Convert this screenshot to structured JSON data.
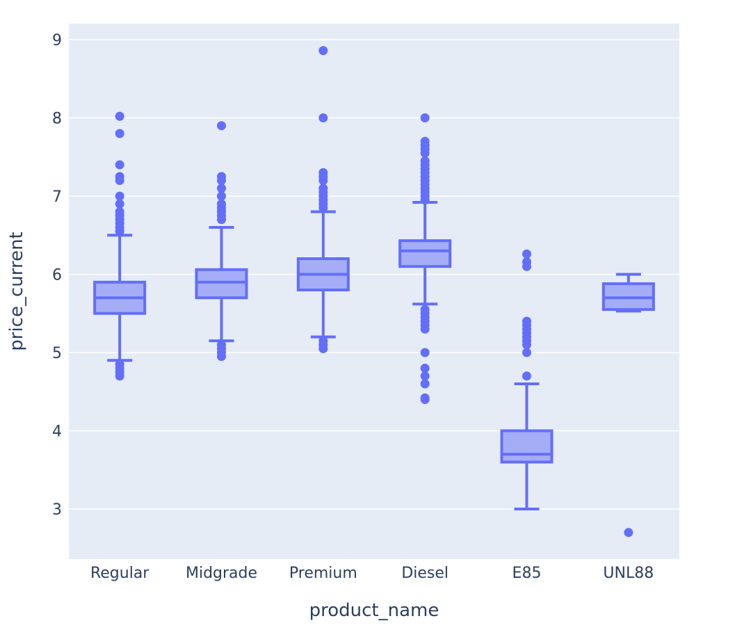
{
  "chart_data": {
    "type": "box",
    "xlabel": "product_name",
    "ylabel": "price_current",
    "ylim": [
      2.38,
      9.2
    ],
    "yticks": [
      3,
      4,
      5,
      6,
      7,
      8,
      9
    ],
    "grid": true,
    "colors": {
      "plot_bg": "#e5ecf6",
      "grid": "#ffffff",
      "box_fill": "#a5adf6",
      "box_line": "#636efa",
      "text": "#2a3f5f"
    },
    "categories": [
      "Regular",
      "Midgrade",
      "Premium",
      "Diesel",
      "E85",
      "UNL88"
    ],
    "boxes": [
      {
        "name": "Regular",
        "lower_fence": 4.9,
        "q1": 5.5,
        "median": 5.7,
        "q3": 5.9,
        "upper_fence": 6.5,
        "outliers": [
          8.02,
          7.8,
          7.4,
          7.25,
          7.2,
          7.0,
          6.9,
          6.8,
          6.75,
          6.7,
          6.65,
          6.6,
          6.55,
          4.85,
          4.8,
          4.75,
          4.7
        ]
      },
      {
        "name": "Midgrade",
        "lower_fence": 5.15,
        "q1": 5.7,
        "median": 5.9,
        "q3": 6.06,
        "upper_fence": 6.6,
        "outliers": [
          7.9,
          7.25,
          7.2,
          7.1,
          7.0,
          6.9,
          6.85,
          6.8,
          6.75,
          6.7,
          5.1,
          5.05,
          5.0,
          4.95
        ]
      },
      {
        "name": "Premium",
        "lower_fence": 5.2,
        "q1": 5.8,
        "median": 6.0,
        "q3": 6.2,
        "upper_fence": 6.8,
        "outliers": [
          8.86,
          8.0,
          7.3,
          7.25,
          7.2,
          7.1,
          7.05,
          7.0,
          6.95,
          6.9,
          6.85,
          5.15,
          5.1,
          5.05
        ]
      },
      {
        "name": "Diesel",
        "lower_fence": 5.62,
        "q1": 6.1,
        "median": 6.3,
        "q3": 6.43,
        "upper_fence": 6.92,
        "outliers": [
          8.0,
          7.7,
          7.65,
          7.6,
          7.55,
          7.45,
          7.4,
          7.35,
          7.3,
          7.25,
          7.2,
          7.15,
          7.1,
          7.05,
          7.0,
          6.95,
          5.55,
          5.5,
          5.45,
          5.4,
          5.35,
          5.3,
          5.0,
          4.8,
          4.7,
          4.6,
          4.42,
          4.4
        ]
      },
      {
        "name": "E85",
        "lower_fence": 3.0,
        "q1": 3.6,
        "median": 3.7,
        "q3": 4.0,
        "upper_fence": 4.6,
        "outliers": [
          6.26,
          6.16,
          6.1,
          5.4,
          5.35,
          5.3,
          5.25,
          5.2,
          5.15,
          5.1,
          5.0,
          4.7
        ]
      },
      {
        "name": "UNL88",
        "lower_fence": 5.53,
        "q1": 5.55,
        "median": 5.7,
        "q3": 5.88,
        "upper_fence": 6.0,
        "outliers": [
          2.7
        ]
      }
    ]
  }
}
